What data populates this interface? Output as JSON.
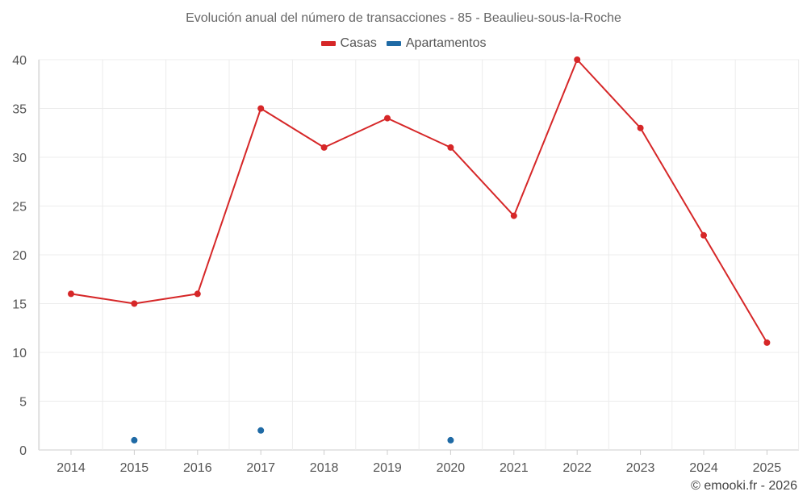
{
  "chart_data": {
    "type": "line",
    "title": "Evolución anual del número de transacciones - 85 - Beaulieu-sous-la-Roche",
    "categories": [
      "2014",
      "2015",
      "2016",
      "2017",
      "2018",
      "2019",
      "2020",
      "2021",
      "2022",
      "2023",
      "2024",
      "2025"
    ],
    "series": [
      {
        "name": "Casas",
        "color": "#d62728",
        "values": [
          16,
          15,
          16,
          35,
          31,
          34,
          31,
          24,
          40,
          33,
          22,
          11
        ]
      },
      {
        "name": "Apartamentos",
        "color": "#1f6aa5",
        "values": [
          null,
          1,
          null,
          2,
          null,
          null,
          1,
          null,
          null,
          null,
          null,
          null
        ]
      }
    ],
    "ylim": [
      0,
      40
    ],
    "yticks": [
      0,
      5,
      10,
      15,
      20,
      25,
      30,
      35,
      40
    ],
    "xlabel": "",
    "ylabel": "",
    "grid": true,
    "legend": "top-center"
  },
  "credit": "© emooki.fr - 2026"
}
